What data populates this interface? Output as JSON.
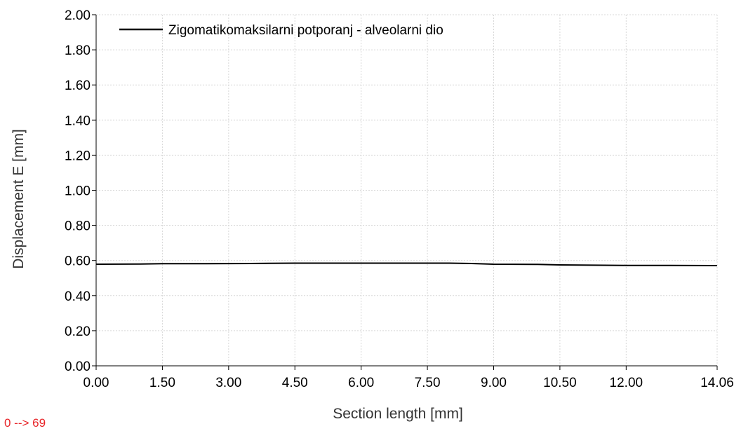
{
  "range_note": "0 --> 69",
  "colors": {
    "series": "#000000",
    "grid": "#d8d8d8",
    "axis": "#000000",
    "range_note": "#e8262a"
  },
  "chart_data": {
    "type": "line",
    "title": "",
    "xlabel": "Section length [mm]",
    "ylabel": "Displacement E [mm]",
    "xlim": [
      0,
      14.06
    ],
    "ylim": [
      0,
      2.0
    ],
    "x_ticks": [
      "0.00",
      "1.50",
      "3.00",
      "4.50",
      "6.00",
      "7.50",
      "9.00",
      "10.50",
      "12.00",
      "14.06"
    ],
    "y_ticks": [
      "0.00",
      "0.20",
      "0.40",
      "0.60",
      "0.80",
      "1.00",
      "1.20",
      "1.40",
      "1.60",
      "1.80",
      "2.00"
    ],
    "grid": true,
    "legend_position": "top-left",
    "series": [
      {
        "name": "Zigomatikomaksilarni potporanj - alveolarni dio",
        "x": [
          0.0,
          1.0,
          1.5,
          2.5,
          3.5,
          4.5,
          6.0,
          7.0,
          8.0,
          8.5,
          9.0,
          10.0,
          10.5,
          11.5,
          12.0,
          13.0,
          14.06
        ],
        "y": [
          0.579,
          0.58,
          0.582,
          0.582,
          0.583,
          0.585,
          0.585,
          0.585,
          0.585,
          0.583,
          0.579,
          0.578,
          0.575,
          0.573,
          0.572,
          0.572,
          0.571
        ]
      }
    ]
  }
}
